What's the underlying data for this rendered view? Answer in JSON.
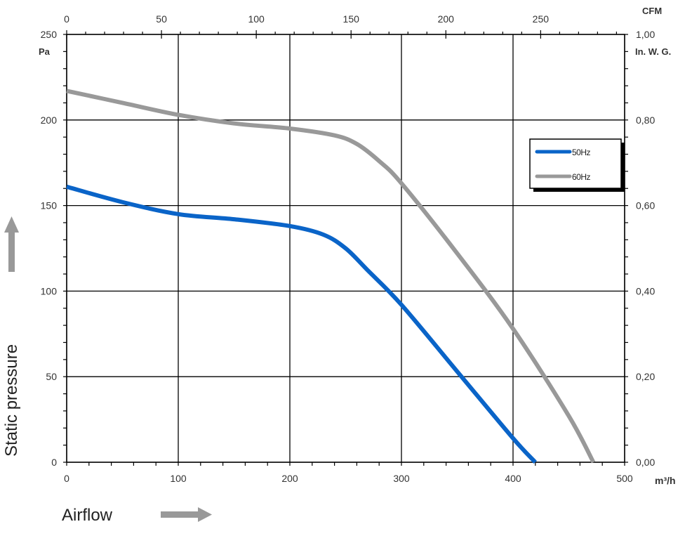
{
  "chart_data": {
    "type": "line",
    "title": "",
    "xlabel": "Airflow",
    "ylabel": "Static pressure",
    "x_unit": "m³/h",
    "y_unit": "Pa",
    "x2_unit": "CFM",
    "y2_unit": "In. W. G.",
    "xlim": [
      0,
      500
    ],
    "ylim": [
      0,
      250
    ],
    "x2lim": [
      0,
      294
    ],
    "y2lim": [
      0,
      1.0
    ],
    "x_ticks": [
      "0",
      "100",
      "200",
      "300",
      "400",
      "500"
    ],
    "y_ticks": [
      "0",
      "50",
      "100",
      "150",
      "200",
      "250"
    ],
    "x2_ticks": [
      "0",
      "50",
      "100",
      "150",
      "200",
      "250"
    ],
    "y2_ticks": [
      "0,00",
      "0,20",
      "0,40",
      "0,60",
      "0,80",
      "1,00"
    ],
    "grid": true,
    "legend_position": "upper-right",
    "series": [
      {
        "name": "50Hz",
        "color": "#0a64c8",
        "points": [
          [
            0,
            161
          ],
          [
            50,
            152
          ],
          [
            100,
            145
          ],
          [
            150,
            142
          ],
          [
            200,
            138
          ],
          [
            230,
            133
          ],
          [
            250,
            125
          ],
          [
            270,
            112
          ],
          [
            300,
            92
          ],
          [
            350,
            53
          ],
          [
            400,
            14
          ],
          [
            420,
            0
          ]
        ]
      },
      {
        "name": "60Hz",
        "color": "#999999",
        "points": [
          [
            0,
            217
          ],
          [
            50,
            210
          ],
          [
            100,
            203
          ],
          [
            150,
            198
          ],
          [
            200,
            195
          ],
          [
            240,
            191
          ],
          [
            260,
            186
          ],
          [
            280,
            176
          ],
          [
            300,
            163
          ],
          [
            350,
            122
          ],
          [
            400,
            78
          ],
          [
            450,
            27
          ],
          [
            472,
            0
          ]
        ]
      }
    ]
  },
  "labels": {
    "x_title": "Airflow",
    "y_title": "Static pressure",
    "x_unit": "m³/h",
    "y_unit": "Pa",
    "x2_unit": "CFM",
    "y2_unit": "In. W. G.",
    "legend_50": "50Hz",
    "legend_60": "60Hz"
  }
}
